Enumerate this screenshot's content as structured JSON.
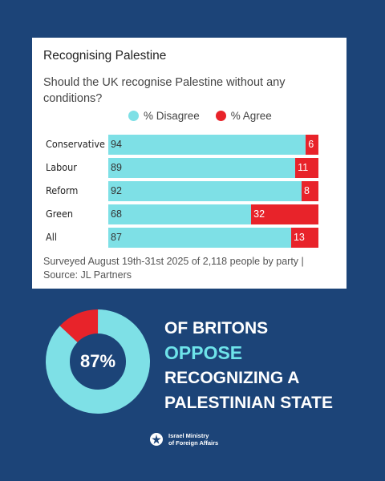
{
  "card": {
    "title": "Recognising Palestine",
    "question": "Should the UK recognise Palestine without any conditions?",
    "source": "Surveyed August 19th-31st 2025 of 2,118 people by party | Source: JL Partners"
  },
  "chart_data": {
    "type": "bar",
    "orientation": "horizontal",
    "stacked": true,
    "categories": [
      "Conservative",
      "Labour",
      "Reform",
      "Green",
      "All"
    ],
    "series": [
      {
        "name": "% Disagree",
        "color": "#7ee0e6",
        "values": [
          94,
          89,
          92,
          68,
          87
        ]
      },
      {
        "name": "% Agree",
        "color": "#e8232a",
        "values": [
          6,
          11,
          8,
          32,
          13
        ]
      }
    ],
    "xlim": [
      0,
      100
    ],
    "legend_position": "top",
    "grid": false
  },
  "donut": {
    "label": "87%",
    "values": [
      87,
      13
    ],
    "colors": [
      "#7ee0e6",
      "#e8232a"
    ]
  },
  "headline": {
    "line1": "OF BRITONS",
    "line2": "OPPOSE",
    "line3": "RECOGNIZING A",
    "line4": "PALESTINIAN STATE"
  },
  "footer": {
    "logo_icon": "ministry-emblem-icon",
    "line1": "Israel Ministry",
    "line2": "of Foreign Affairs"
  }
}
